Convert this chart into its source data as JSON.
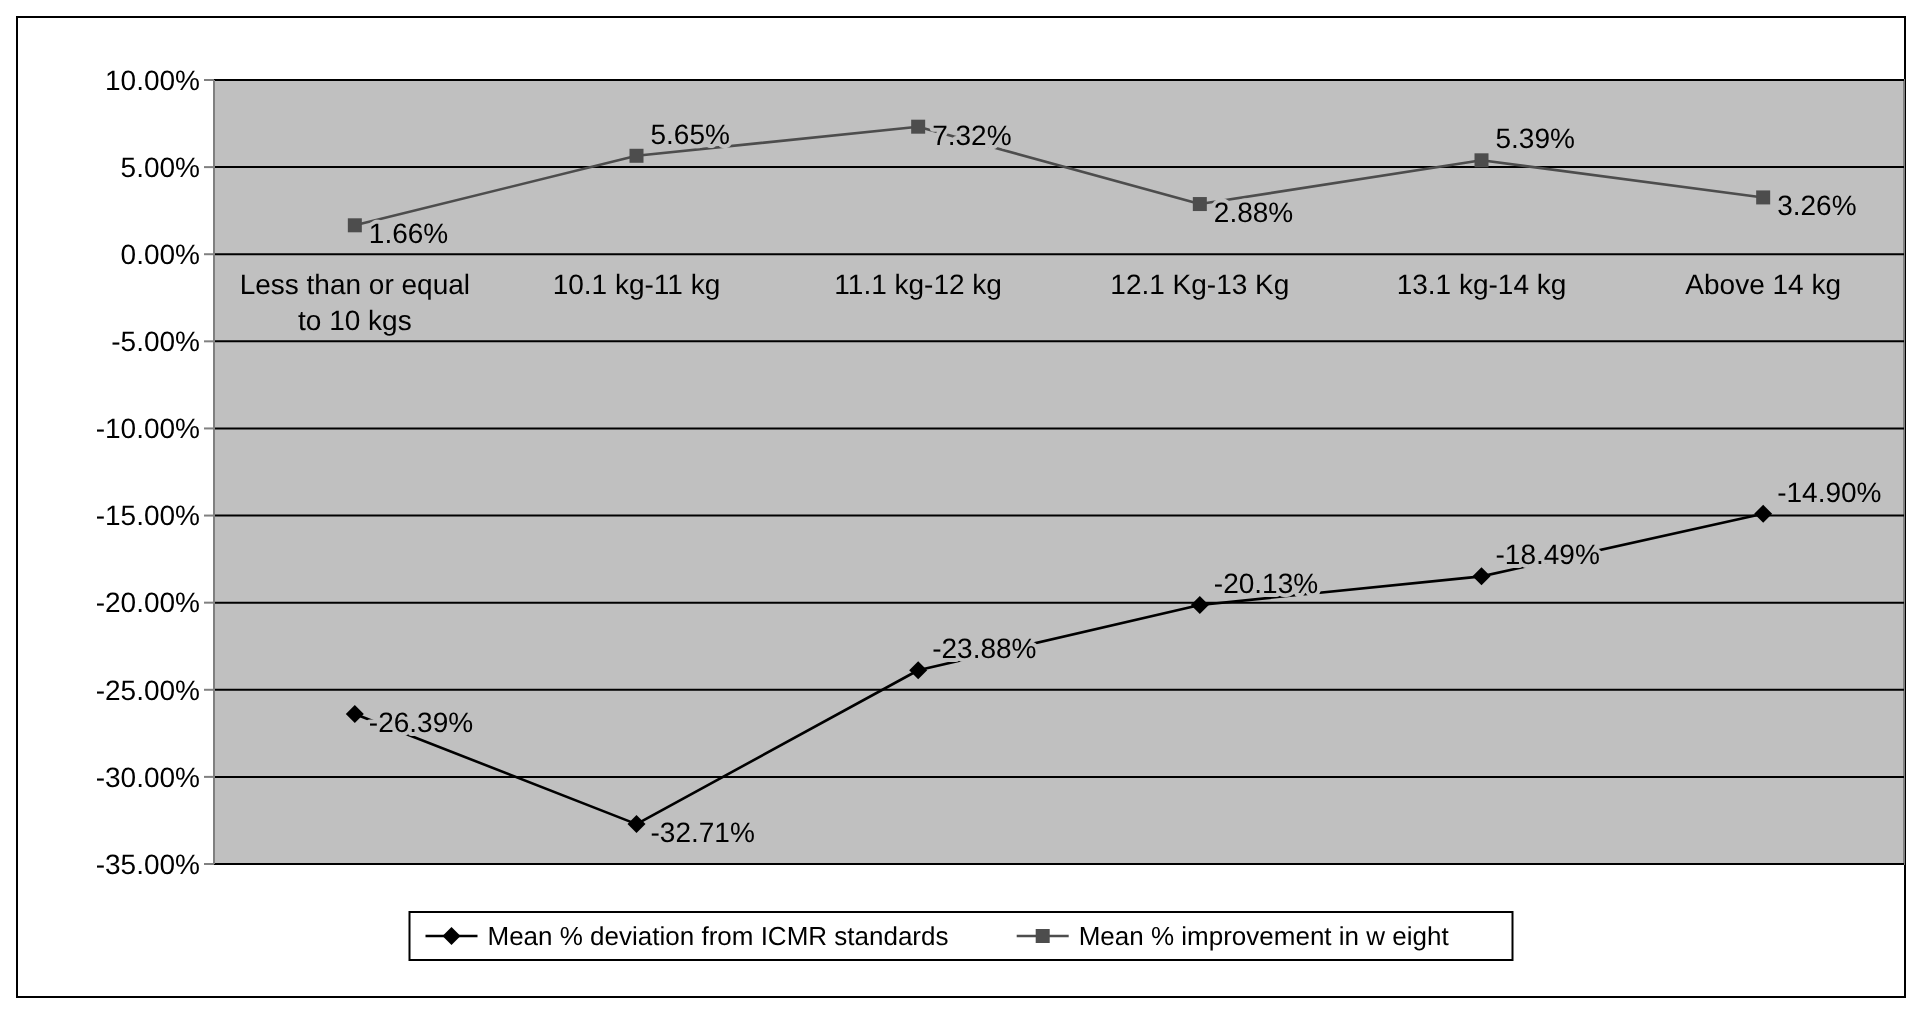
{
  "chart_data": {
    "type": "line",
    "categories": [
      "Less than or equal to 10 kgs",
      "10.1 kg-11 kg",
      "11.1 kg-12 kg",
      "12.1 Kg-13 Kg",
      "13.1 kg-14 kg",
      "Above 14 kg"
    ],
    "series": [
      {
        "name": "Mean % deviation from ICMR standards",
        "color": "#000000",
        "marker": "diamond",
        "values": [
          -26.39,
          -32.71,
          -23.88,
          -20.13,
          -18.49,
          -14.9
        ],
        "value_labels": [
          "-26.39%",
          "-32.71%",
          "-23.88%",
          "-20.13%",
          "-18.49%",
          "-14.90%"
        ]
      },
      {
        "name": "Mean % improvement in w eight",
        "color": "#4d4d4d",
        "marker": "square",
        "values": [
          1.66,
          5.65,
          7.32,
          2.88,
          5.39,
          3.26
        ],
        "value_labels": [
          "1.66%",
          "5.65%",
          "7.32%",
          "2.88%",
          "5.39%",
          "3.26%"
        ]
      }
    ],
    "ylim": [
      -35,
      10
    ],
    "yticks": [
      {
        "value": 10,
        "label": "10.00%"
      },
      {
        "value": 5,
        "label": "5.00%"
      },
      {
        "value": 0,
        "label": "0.00%"
      },
      {
        "value": -5,
        "label": "-5.00%"
      },
      {
        "value": -10,
        "label": "-10.00%"
      },
      {
        "value": -15,
        "label": "-15.00%"
      },
      {
        "value": -20,
        "label": "-20.00%"
      },
      {
        "value": -25,
        "label": "-25.00%"
      },
      {
        "value": -30,
        "label": "-30.00%"
      },
      {
        "value": -35,
        "label": "-35.00%"
      }
    ],
    "grid": "y",
    "legend": "bottom",
    "line_style": "solid"
  }
}
